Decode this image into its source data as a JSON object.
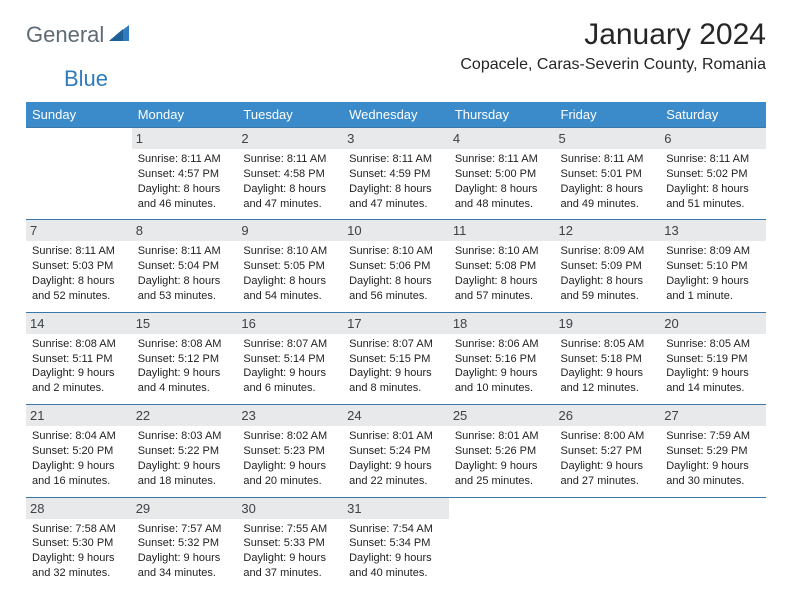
{
  "logo": {
    "general": "General",
    "blue": "Blue"
  },
  "title": "January 2024",
  "location": "Copacele, Caras-Severin County, Romania",
  "colors": {
    "header_bg": "#3b8bca",
    "header_text": "#ffffff",
    "day_bg": "#e8e9ea",
    "border": "#3b78a8",
    "logo_gray": "#5f6b74",
    "logo_blue": "#2f7bbf",
    "text": "#1f1f1f"
  },
  "dow": [
    "Sunday",
    "Monday",
    "Tuesday",
    "Wednesday",
    "Thursday",
    "Friday",
    "Saturday"
  ],
  "weeks": [
    [
      null,
      {
        "n": "1",
        "sr": "8:11 AM",
        "ss": "4:57 PM",
        "dl": "8 hours and 46 minutes."
      },
      {
        "n": "2",
        "sr": "8:11 AM",
        "ss": "4:58 PM",
        "dl": "8 hours and 47 minutes."
      },
      {
        "n": "3",
        "sr": "8:11 AM",
        "ss": "4:59 PM",
        "dl": "8 hours and 47 minutes."
      },
      {
        "n": "4",
        "sr": "8:11 AM",
        "ss": "5:00 PM",
        "dl": "8 hours and 48 minutes."
      },
      {
        "n": "5",
        "sr": "8:11 AM",
        "ss": "5:01 PM",
        "dl": "8 hours and 49 minutes."
      },
      {
        "n": "6",
        "sr": "8:11 AM",
        "ss": "5:02 PM",
        "dl": "8 hours and 51 minutes."
      }
    ],
    [
      {
        "n": "7",
        "sr": "8:11 AM",
        "ss": "5:03 PM",
        "dl": "8 hours and 52 minutes."
      },
      {
        "n": "8",
        "sr": "8:11 AM",
        "ss": "5:04 PM",
        "dl": "8 hours and 53 minutes."
      },
      {
        "n": "9",
        "sr": "8:10 AM",
        "ss": "5:05 PM",
        "dl": "8 hours and 54 minutes."
      },
      {
        "n": "10",
        "sr": "8:10 AM",
        "ss": "5:06 PM",
        "dl": "8 hours and 56 minutes."
      },
      {
        "n": "11",
        "sr": "8:10 AM",
        "ss": "5:08 PM",
        "dl": "8 hours and 57 minutes."
      },
      {
        "n": "12",
        "sr": "8:09 AM",
        "ss": "5:09 PM",
        "dl": "8 hours and 59 minutes."
      },
      {
        "n": "13",
        "sr": "8:09 AM",
        "ss": "5:10 PM",
        "dl": "9 hours and 1 minute."
      }
    ],
    [
      {
        "n": "14",
        "sr": "8:08 AM",
        "ss": "5:11 PM",
        "dl": "9 hours and 2 minutes."
      },
      {
        "n": "15",
        "sr": "8:08 AM",
        "ss": "5:12 PM",
        "dl": "9 hours and 4 minutes."
      },
      {
        "n": "16",
        "sr": "8:07 AM",
        "ss": "5:14 PM",
        "dl": "9 hours and 6 minutes."
      },
      {
        "n": "17",
        "sr": "8:07 AM",
        "ss": "5:15 PM",
        "dl": "9 hours and 8 minutes."
      },
      {
        "n": "18",
        "sr": "8:06 AM",
        "ss": "5:16 PM",
        "dl": "9 hours and 10 minutes."
      },
      {
        "n": "19",
        "sr": "8:05 AM",
        "ss": "5:18 PM",
        "dl": "9 hours and 12 minutes."
      },
      {
        "n": "20",
        "sr": "8:05 AM",
        "ss": "5:19 PM",
        "dl": "9 hours and 14 minutes."
      }
    ],
    [
      {
        "n": "21",
        "sr": "8:04 AM",
        "ss": "5:20 PM",
        "dl": "9 hours and 16 minutes."
      },
      {
        "n": "22",
        "sr": "8:03 AM",
        "ss": "5:22 PM",
        "dl": "9 hours and 18 minutes."
      },
      {
        "n": "23",
        "sr": "8:02 AM",
        "ss": "5:23 PM",
        "dl": "9 hours and 20 minutes."
      },
      {
        "n": "24",
        "sr": "8:01 AM",
        "ss": "5:24 PM",
        "dl": "9 hours and 22 minutes."
      },
      {
        "n": "25",
        "sr": "8:01 AM",
        "ss": "5:26 PM",
        "dl": "9 hours and 25 minutes."
      },
      {
        "n": "26",
        "sr": "8:00 AM",
        "ss": "5:27 PM",
        "dl": "9 hours and 27 minutes."
      },
      {
        "n": "27",
        "sr": "7:59 AM",
        "ss": "5:29 PM",
        "dl": "9 hours and 30 minutes."
      }
    ],
    [
      {
        "n": "28",
        "sr": "7:58 AM",
        "ss": "5:30 PM",
        "dl": "9 hours and 32 minutes."
      },
      {
        "n": "29",
        "sr": "7:57 AM",
        "ss": "5:32 PM",
        "dl": "9 hours and 34 minutes."
      },
      {
        "n": "30",
        "sr": "7:55 AM",
        "ss": "5:33 PM",
        "dl": "9 hours and 37 minutes."
      },
      {
        "n": "31",
        "sr": "7:54 AM",
        "ss": "5:34 PM",
        "dl": "9 hours and 40 minutes."
      },
      null,
      null,
      null
    ]
  ],
  "labels": {
    "sunrise": "Sunrise:",
    "sunset": "Sunset:",
    "daylight": "Daylight:"
  }
}
